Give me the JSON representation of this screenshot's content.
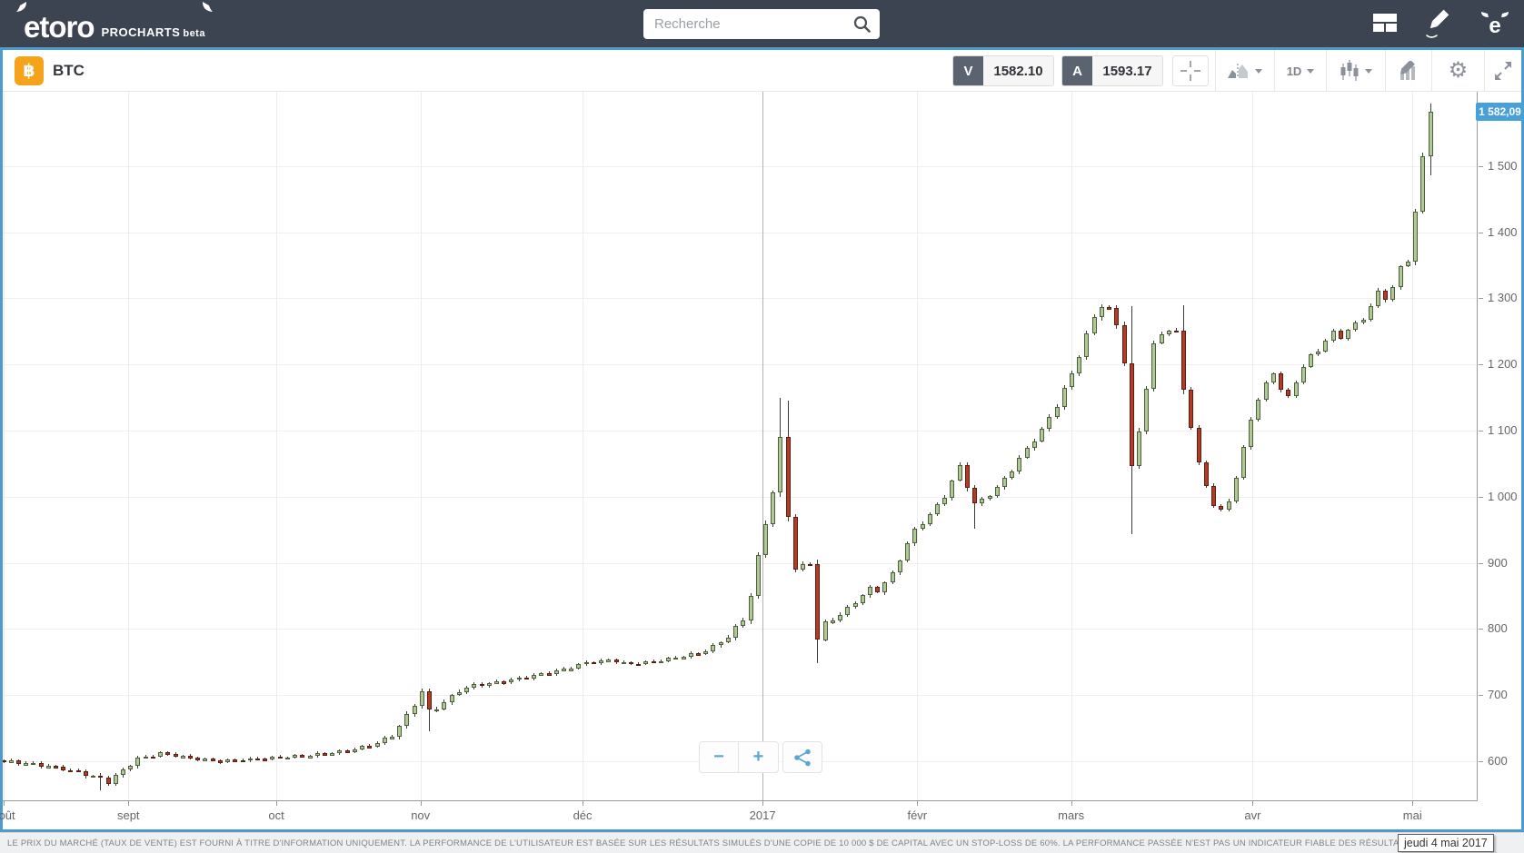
{
  "topbar": {
    "logo_text": "etoro",
    "product": "PROCHARTS",
    "beta": "beta",
    "search_placeholder": "Recherche"
  },
  "toolbar": {
    "symbol": "BTC",
    "symbol_icon": "bitcoin-icon",
    "sell_label": "V",
    "sell_price": "1582.10",
    "buy_label": "A",
    "buy_price": "1593.17",
    "timeframe": "1D"
  },
  "zoom_controls": {
    "minus": "−",
    "plus": "+"
  },
  "tooltip_date": "jeudi 4 mai 2017",
  "disclaimer": "LE PRIX DU MARCHÉ (TAUX DE VENTE) EST FOURNI À TITRE D'INFORMATION UNIQUEMENT. LA PERFORMANCE DE L'UTILISATEUR EST BASÉE SUR LES RÉSULTATS SIMULÉS D'UNE COPIE DE 10 000 $ DE CAPITAL AVEC UN STOP-LOSS DE 60%. LA PERFORMANCE PASSÉE N'EST PAS UN INDICATEUR FIABLE DES RÉSULTATS FUTURS.",
  "chart_data": {
    "type": "candlestick",
    "symbol": "BTC",
    "timeframe": "1D",
    "current_price": 1582.09,
    "current_price_label": "1 582,09",
    "y_axis": {
      "ticks": [
        {
          "v": 600,
          "label": "600"
        },
        {
          "v": 700,
          "label": "700"
        },
        {
          "v": 800,
          "label": "800"
        },
        {
          "v": 900,
          "label": "900"
        },
        {
          "v": 1000,
          "label": "1 000"
        },
        {
          "v": 1100,
          "label": "1 100"
        },
        {
          "v": 1200,
          "label": "1 200"
        },
        {
          "v": 1300,
          "label": "1 300"
        },
        {
          "v": 1400,
          "label": "1 400"
        },
        {
          "v": 1500,
          "label": "1 500"
        }
      ],
      "visible_range": [
        540,
        1612
      ]
    },
    "x_axis": {
      "months": [
        {
          "label": "août",
          "i": 0,
          "major": false
        },
        {
          "label": "sept",
          "i": 16.7,
          "major": false
        },
        {
          "label": "oct",
          "i": 36.5,
          "major": false
        },
        {
          "label": "nov",
          "i": 55.8,
          "major": false
        },
        {
          "label": "déc",
          "i": 77.5,
          "major": false
        },
        {
          "label": "2017",
          "i": 101.6,
          "major": true
        },
        {
          "label": "févr",
          "i": 122.3,
          "major": false
        },
        {
          "label": "mars",
          "i": 142.9,
          "major": false
        },
        {
          "label": "avr",
          "i": 167.2,
          "major": false
        },
        {
          "label": "mai",
          "i": 188.6,
          "major": false
        }
      ]
    },
    "n_candles": 192,
    "open_first": 602,
    "price_keyframes": [
      [
        0,
        600,
        5
      ],
      [
        4,
        596,
        5
      ],
      [
        8,
        589,
        5
      ],
      [
        12,
        577,
        6
      ],
      [
        14,
        569,
        7
      ],
      [
        16,
        586,
        6
      ],
      [
        18,
        604,
        5
      ],
      [
        21,
        612,
        4
      ],
      [
        25,
        605,
        4
      ],
      [
        29,
        600,
        4
      ],
      [
        33,
        603,
        4
      ],
      [
        37,
        606,
        4
      ],
      [
        41,
        609,
        4
      ],
      [
        45,
        614,
        4
      ],
      [
        49,
        623,
        5
      ],
      [
        52,
        639,
        6
      ],
      [
        54,
        668,
        7
      ],
      [
        56,
        706,
        8
      ],
      [
        57,
        675,
        9
      ],
      [
        59,
        689,
        7
      ],
      [
        61,
        707,
        6
      ],
      [
        63,
        715,
        5
      ],
      [
        66,
        719,
        5
      ],
      [
        69,
        725,
        5
      ],
      [
        72,
        732,
        5
      ],
      [
        75,
        739,
        5
      ],
      [
        78,
        749,
        5
      ],
      [
        81,
        753,
        4
      ],
      [
        84,
        747,
        4
      ],
      [
        87,
        751,
        4
      ],
      [
        90,
        757,
        4
      ],
      [
        93,
        763,
        5
      ],
      [
        95,
        773,
        5
      ],
      [
        97,
        789,
        6
      ],
      [
        99,
        814,
        7
      ],
      [
        100,
        852,
        8
      ],
      [
        101,
        908,
        9
      ],
      [
        102,
        960,
        9
      ],
      [
        103,
        1008,
        9
      ],
      [
        104,
        1085,
        12
      ],
      [
        105,
        972,
        12
      ],
      [
        106,
        892,
        10
      ],
      [
        107,
        896,
        6
      ],
      [
        108,
        900,
        6
      ],
      [
        109,
        785,
        12
      ],
      [
        110,
        808,
        8
      ],
      [
        112,
        822,
        6
      ],
      [
        114,
        841,
        6
      ],
      [
        116,
        861,
        6
      ],
      [
        117,
        857,
        5
      ],
      [
        119,
        883,
        6
      ],
      [
        121,
        929,
        6
      ],
      [
        122,
        950,
        6
      ],
      [
        124,
        973,
        6
      ],
      [
        126,
        1001,
        6
      ],
      [
        128,
        1046,
        7
      ],
      [
        130,
        988,
        9
      ],
      [
        131,
        995,
        6
      ],
      [
        133,
        1013,
        6
      ],
      [
        135,
        1041,
        7
      ],
      [
        137,
        1073,
        7
      ],
      [
        139,
        1101,
        7
      ],
      [
        141,
        1139,
        8
      ],
      [
        143,
        1186,
        8
      ],
      [
        145,
        1244,
        8
      ],
      [
        146,
        1272,
        8
      ],
      [
        147,
        1290,
        9
      ],
      [
        148,
        1283,
        7
      ],
      [
        149,
        1259,
        8
      ],
      [
        150,
        1205,
        10
      ],
      [
        151,
        1040,
        14
      ],
      [
        152,
        1100,
        9
      ],
      [
        153,
        1166,
        9
      ],
      [
        154,
        1229,
        8
      ],
      [
        155,
        1247,
        6
      ],
      [
        156,
        1253,
        5
      ],
      [
        157,
        1248,
        6
      ],
      [
        158,
        1163,
        10
      ],
      [
        159,
        1106,
        8
      ],
      [
        160,
        1049,
        8
      ],
      [
        161,
        1018,
        7
      ],
      [
        162,
        988,
        7
      ],
      [
        163,
        978,
        6
      ],
      [
        164,
        995,
        6
      ],
      [
        165,
        1030,
        7
      ],
      [
        166,
        1072,
        7
      ],
      [
        167,
        1118,
        7
      ],
      [
        168,
        1148,
        6
      ],
      [
        169,
        1170,
        6
      ],
      [
        170,
        1188,
        6
      ],
      [
        171,
        1162,
        7
      ],
      [
        172,
        1150,
        6
      ],
      [
        173,
        1175,
        6
      ],
      [
        174,
        1197,
        6
      ],
      [
        175,
        1213,
        5
      ],
      [
        176,
        1222,
        5
      ],
      [
        177,
        1236,
        5
      ],
      [
        178,
        1249,
        5
      ],
      [
        179,
        1241,
        5
      ],
      [
        180,
        1252,
        5
      ],
      [
        181,
        1262,
        5
      ],
      [
        182,
        1270,
        5
      ],
      [
        183,
        1288,
        6
      ],
      [
        184,
        1310,
        6
      ],
      [
        185,
        1300,
        6
      ],
      [
        186,
        1316,
        6
      ],
      [
        187,
        1347,
        6
      ],
      [
        188,
        1358,
        6
      ],
      [
        189,
        1430,
        8
      ],
      [
        190,
        1512,
        9
      ],
      [
        191,
        1582.09,
        8
      ]
    ],
    "wick_overrides": [
      [
        13,
        null,
        556
      ],
      [
        57,
        null,
        645
      ],
      [
        104,
        1150,
        null
      ],
      [
        105,
        1145,
        null
      ],
      [
        109,
        null,
        749
      ],
      [
        130,
        null,
        951
      ],
      [
        151,
        1288,
        944
      ],
      [
        158,
        1290,
        null
      ],
      [
        190,
        1520,
        null
      ],
      [
        191,
        1595,
        1486
      ]
    ],
    "colors": {
      "up_fill": "#aec897",
      "up_border": "#4e5f39",
      "down_fill": "#b23b28",
      "down_border": "#5a1d10",
      "wick": "#3c3c3c",
      "grid": "#f0f0f0",
      "grid_month": "#ececec",
      "grid_major": "#b3b3b3",
      "axis": "#9a9a9a",
      "label": "#666666",
      "price_chip_bg": "#48a0d8",
      "accent_blue": "#4d9bce"
    }
  }
}
